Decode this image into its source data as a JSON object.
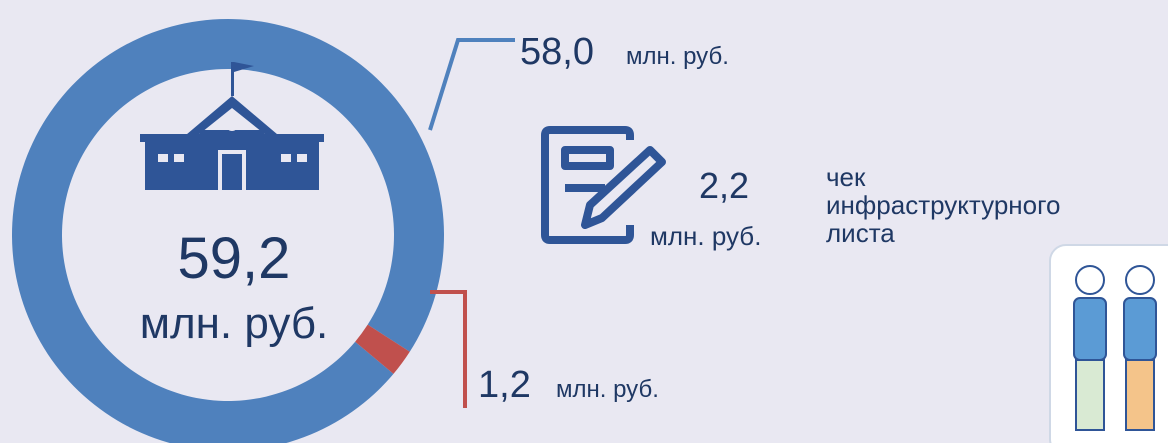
{
  "chart_data": {
    "type": "pie",
    "donut": true,
    "values": [
      58.0,
      1.2
    ],
    "value_labels": [
      "58,0",
      "1,2"
    ],
    "colors": [
      "#4f81bd",
      "#c0504d"
    ],
    "unit": "млн. руб.",
    "center": {
      "label": "59,2",
      "unit": "млн. руб."
    },
    "annotation": {
      "label": "2,2",
      "unit": "млн. руб.",
      "caption": [
        "чек",
        "инфраструктурного",
        "листа"
      ]
    }
  }
}
